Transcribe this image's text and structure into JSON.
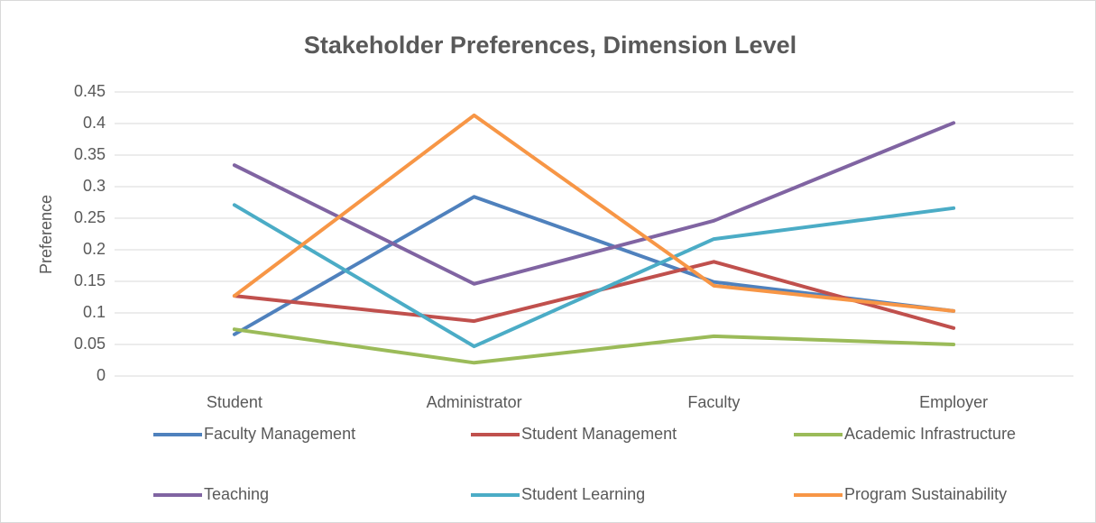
{
  "chart_data": {
    "type": "line",
    "title": "Stakeholder Preferences, Dimension Level",
    "y_label": "Preference",
    "categories": [
      "Student",
      "Administrator",
      "Faculty",
      "Employer"
    ],
    "series": [
      {
        "name": "Faculty Management",
        "color": "#4f81bd",
        "values": [
          0.066,
          0.284,
          0.149,
          0.103
        ]
      },
      {
        "name": "Student Management",
        "color": "#c0504d",
        "values": [
          0.127,
          0.087,
          0.181,
          0.076
        ]
      },
      {
        "name": "Academic Infrastructure",
        "color": "#9bbb59",
        "values": [
          0.074,
          0.021,
          0.063,
          0.05
        ]
      },
      {
        "name": "Teaching",
        "color": "#8064a2",
        "values": [
          0.334,
          0.146,
          0.246,
          0.401
        ]
      },
      {
        "name": "Student Learning",
        "color": "#4bacc6",
        "values": [
          0.271,
          0.047,
          0.217,
          0.266
        ]
      },
      {
        "name": "Program Sustainability",
        "color": "#f79646",
        "values": [
          0.127,
          0.413,
          0.143,
          0.103
        ]
      }
    ],
    "ylim": [
      0,
      0.45
    ],
    "yticks": [
      0,
      0.05,
      0.1,
      0.15,
      0.2,
      0.25,
      0.3,
      0.35,
      0.4,
      0.45
    ],
    "grid": true,
    "legend": "bottom"
  }
}
